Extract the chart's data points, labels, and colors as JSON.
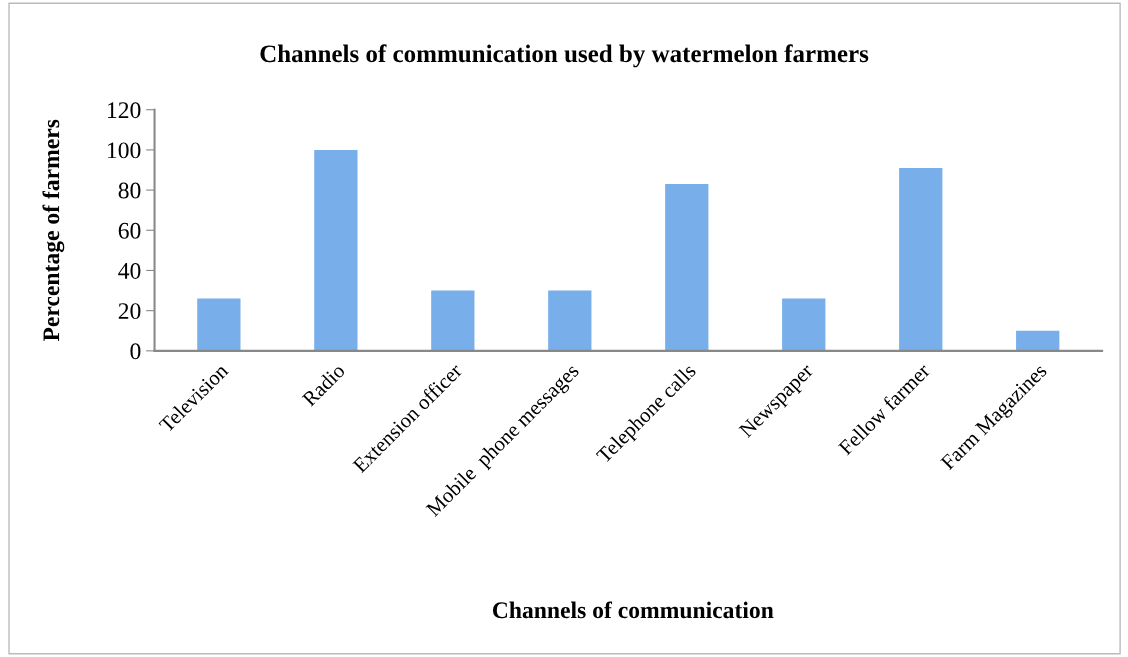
{
  "chart_data": {
    "type": "bar",
    "title": "Channels of communication used by watermelon farmers",
    "xlabel": "Channels of communication",
    "ylabel": "Percentage of farmers",
    "categories": [
      "Television",
      "Radio",
      "Extension officer",
      "Mobile  phone messages",
      "Telephone calls",
      "Newspaper",
      "Fellow farmer",
      "Farm Magazines"
    ],
    "values": [
      26,
      100,
      30,
      30,
      83,
      26,
      91,
      10
    ],
    "color": "#78aeea",
    "ylim": [
      0,
      120
    ],
    "yticks": [
      0,
      20,
      40,
      60,
      80,
      100,
      120
    ],
    "grid": false,
    "legend": false
  }
}
